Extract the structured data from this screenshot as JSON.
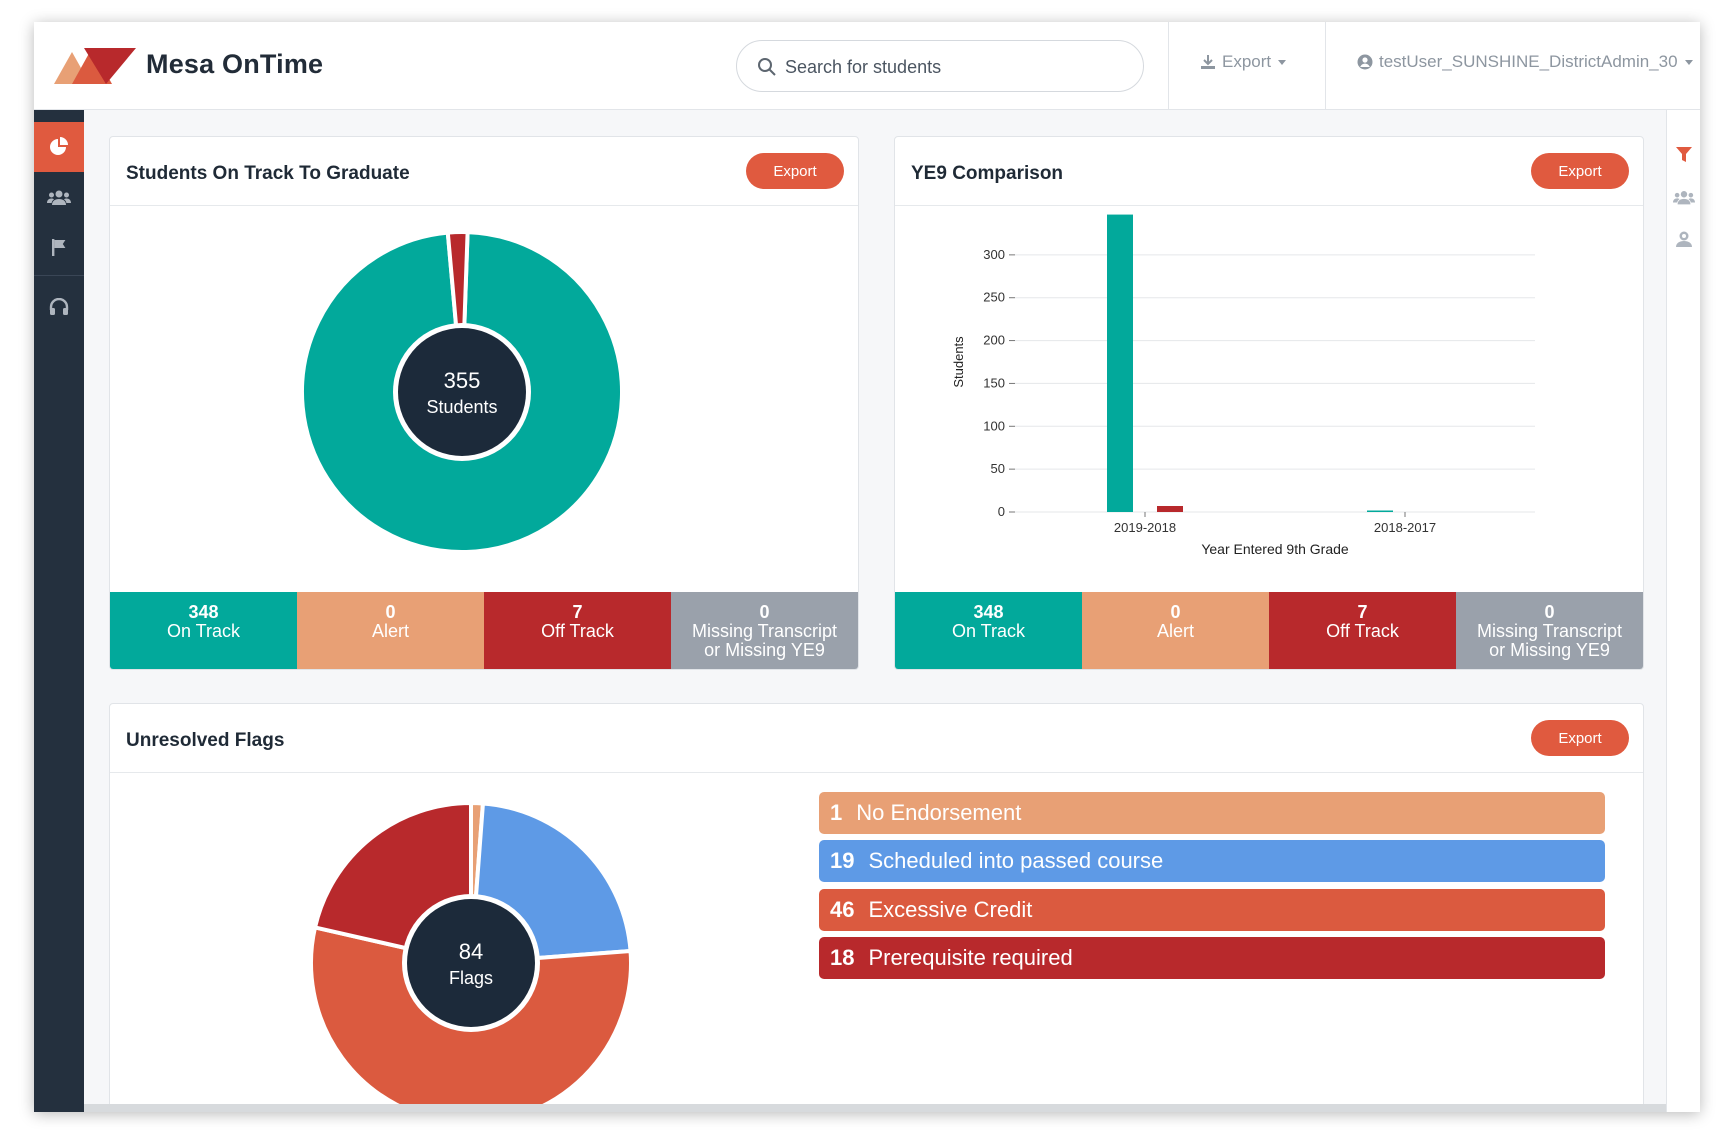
{
  "app": {
    "name": "Mesa OnTime"
  },
  "header": {
    "search_placeholder": "Search for students",
    "export_label": "Export",
    "user_label": "testUser_SUNSHINE_DistrictAdmin_30"
  },
  "colors": {
    "on_track": "#02a99b",
    "alert": "#e8a075",
    "off_track": "#b8292c",
    "missing": "#9aa1ab",
    "accent": "#e05a3f",
    "scheduled": "#5e9ae6",
    "excessive": "#db5a3f",
    "navy": "#1c2a3a"
  },
  "on_track_card": {
    "title": "Students On Track To Graduate",
    "export_label": "Export",
    "center_value": "355",
    "center_label": "Students",
    "stats": [
      {
        "value": "348",
        "label": "On Track"
      },
      {
        "value": "0",
        "label": "Alert"
      },
      {
        "value": "7",
        "label": "Off Track"
      },
      {
        "value": "0",
        "label": "Missing Transcript",
        "label2": "or Missing YE9"
      }
    ]
  },
  "ye9_card": {
    "title": "YE9 Comparison",
    "export_label": "Export",
    "stats": [
      {
        "value": "348",
        "label": "On Track"
      },
      {
        "value": "0",
        "label": "Alert"
      },
      {
        "value": "7",
        "label": "Off Track"
      },
      {
        "value": "0",
        "label": "Missing Transcript",
        "label2": "or Missing YE9"
      }
    ]
  },
  "flags_card": {
    "title": "Unresolved Flags",
    "export_label": "Export",
    "center_value": "84",
    "center_label": "Flags",
    "flags": [
      {
        "count": "1",
        "label": "No Endorsement"
      },
      {
        "count": "19",
        "label": "Scheduled into passed course"
      },
      {
        "count": "46",
        "label": "Excessive Credit"
      },
      {
        "count": "18",
        "label": "Prerequisite required"
      }
    ]
  },
  "chart_data": [
    {
      "type": "pie",
      "labels": [
        "On Track",
        "Alert",
        "Off Track",
        "Missing Transcript or Missing YE9"
      ],
      "values": [
        348,
        0,
        7,
        0
      ]
    },
    {
      "type": "bar",
      "xlabel": "Year Entered 9th Grade",
      "ylabel": "Students",
      "categories": [
        "2019-2018",
        "2018-2017"
      ],
      "series": [
        {
          "name": "On Track",
          "values": [
            347,
            1
          ]
        },
        {
          "name": "Off Track",
          "values": [
            7,
            0
          ]
        }
      ],
      "ylim": [
        0,
        350
      ],
      "yticks": [
        0,
        50,
        100,
        150,
        200,
        250,
        300
      ],
      "grid": true
    },
    {
      "type": "pie",
      "labels": [
        "No Endorsement",
        "Scheduled into passed course",
        "Excessive Credit",
        "Prerequisite required"
      ],
      "values": [
        1,
        19,
        46,
        18
      ]
    }
  ]
}
